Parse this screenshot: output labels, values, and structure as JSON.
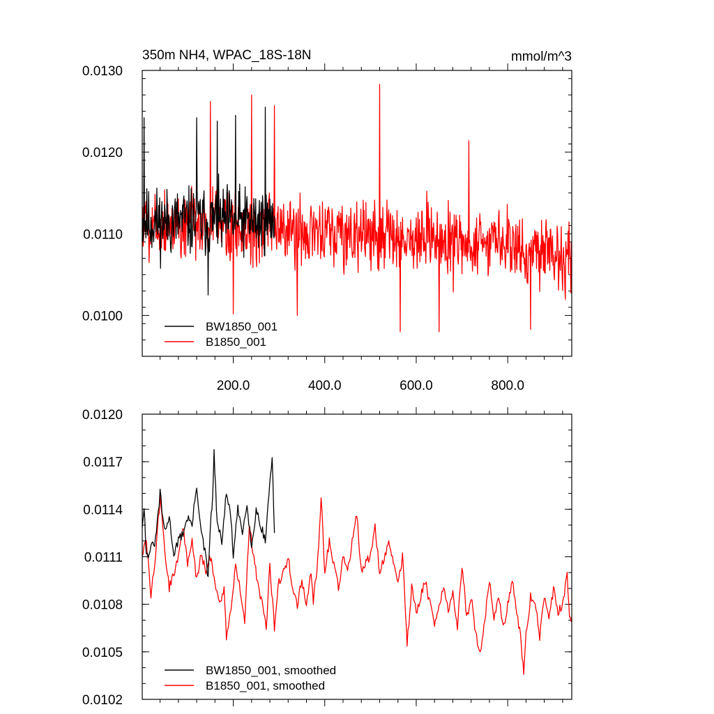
{
  "chart_data": [
    {
      "type": "line",
      "title_left": "350m NH4, WPAC_18S-18N",
      "title_right": "mmol/m^3",
      "xlabel": "",
      "ylabel": "",
      "xlim": [
        1,
        940
      ],
      "ylim": [
        0.0095,
        0.013
      ],
      "xticks": [
        200,
        400,
        600,
        800
      ],
      "xtick_labels": [
        "200.0",
        "400.0",
        "600.0",
        "800.0"
      ],
      "yticks": [
        0.01,
        0.011,
        0.012,
        0.013
      ],
      "ytick_labels": [
        "0.0100",
        "0.0110",
        "0.0120",
        "0.0130"
      ],
      "legend_placement": "bottom-left",
      "grid": false,
      "series": [
        {
          "name": "BW1850_001",
          "color": "#000000",
          "x_range": [
            1,
            290
          ],
          "mean": 0.01115,
          "noise": 0.00068,
          "seed": 11,
          "highlights": [
            [
              5,
              0.01242
            ],
            [
              120,
              0.01242
            ],
            [
              165,
              0.01238
            ],
            [
              205,
              0.01245
            ],
            [
              270,
              0.01255
            ],
            [
              145,
              0.01025
            ]
          ]
        },
        {
          "name": "B1850_001",
          "color": "#ff0000",
          "x_range": [
            1,
            940
          ],
          "mean_start": 0.01115,
          "mean_end": 0.0108,
          "noise": 0.00072,
          "seed": 5,
          "highlights": [
            [
              150,
              0.01262
            ],
            [
              200,
              0.01002
            ],
            [
              240,
              0.0127
            ],
            [
              290,
              0.01257
            ],
            [
              340,
              0.01
            ],
            [
              520,
              0.01283
            ],
            [
              565,
              0.0098
            ],
            [
              650,
              0.0098
            ],
            [
              715,
              0.01214
            ],
            [
              850,
              0.00983
            ]
          ]
        }
      ]
    },
    {
      "type": "line",
      "title_left": "",
      "title_right": "",
      "xlabel": "",
      "ylabel": "",
      "xlim": [
        1,
        940
      ],
      "ylim": [
        0.0102,
        0.012
      ],
      "xticks": [
        200,
        400,
        600,
        800
      ],
      "xtick_labels": [],
      "yticks": [
        0.0102,
        0.0105,
        0.0108,
        0.0111,
        0.0114,
        0.0117,
        0.012
      ],
      "ytick_labels": [
        "0.0102",
        "0.0105",
        "0.0108",
        "0.0111",
        "0.0114",
        "0.0117",
        "0.0120"
      ],
      "legend_placement": "bottom-left",
      "grid": false,
      "series": [
        {
          "name": "BW1850_001, smoothed",
          "color": "#000000",
          "points": [
            [
              1,
              0.0113
            ],
            [
              5,
              0.01143
            ],
            [
              10,
              0.0111
            ],
            [
              20,
              0.01115
            ],
            [
              30,
              0.0112
            ],
            [
              40,
              0.0115
            ],
            [
              50,
              0.01125
            ],
            [
              60,
              0.01135
            ],
            [
              70,
              0.01112
            ],
            [
              80,
              0.0112
            ],
            [
              90,
              0.01125
            ],
            [
              100,
              0.01135
            ],
            [
              110,
              0.0113
            ],
            [
              120,
              0.01155
            ],
            [
              130,
              0.01125
            ],
            [
              140,
              0.0111
            ],
            [
              145,
              0.01095
            ],
            [
              150,
              0.0113
            ],
            [
              155,
              0.01148
            ],
            [
              158,
              0.01175
            ],
            [
              165,
              0.0113
            ],
            [
              175,
              0.0112
            ],
            [
              185,
              0.0115
            ],
            [
              195,
              0.01135
            ],
            [
              200,
              0.0111
            ],
            [
              210,
              0.0114
            ],
            [
              220,
              0.01125
            ],
            [
              230,
              0.01145
            ],
            [
              240,
              0.01115
            ],
            [
              250,
              0.0114
            ],
            [
              260,
              0.0113
            ],
            [
              270,
              0.0112
            ],
            [
              278,
              0.0115
            ],
            [
              285,
              0.01173
            ],
            [
              290,
              0.01125
            ]
          ]
        },
        {
          "name": "B1850_001, smoothed",
          "color": "#ff0000",
          "points": [
            [
              1,
              0.01112
            ],
            [
              10,
              0.0112
            ],
            [
              20,
              0.01085
            ],
            [
              30,
              0.0111
            ],
            [
              40,
              0.01148
            ],
            [
              50,
              0.01115
            ],
            [
              60,
              0.0109
            ],
            [
              70,
              0.011
            ],
            [
              80,
              0.0111
            ],
            [
              90,
              0.0113
            ],
            [
              100,
              0.01105
            ],
            [
              110,
              0.0112
            ],
            [
              120,
              0.01095
            ],
            [
              130,
              0.01112
            ],
            [
              140,
              0.011
            ],
            [
              150,
              0.0111
            ],
            [
              160,
              0.01095
            ],
            [
              170,
              0.0108
            ],
            [
              180,
              0.0109
            ],
            [
              185,
              0.0106
            ],
            [
              195,
              0.01075
            ],
            [
              205,
              0.01105
            ],
            [
              215,
              0.0109
            ],
            [
              225,
              0.0107
            ],
            [
              235,
              0.0113
            ],
            [
              245,
              0.0111
            ],
            [
              255,
              0.0109
            ],
            [
              265,
              0.0108
            ],
            [
              272,
              0.01065
            ],
            [
              280,
              0.01105
            ],
            [
              290,
              0.01065
            ],
            [
              300,
              0.01095
            ],
            [
              310,
              0.011
            ],
            [
              320,
              0.0111
            ],
            [
              330,
              0.0109
            ],
            [
              340,
              0.0108
            ],
            [
              350,
              0.01095
            ],
            [
              360,
              0.0108
            ],
            [
              370,
              0.011
            ],
            [
              375,
              0.0108
            ],
            [
              385,
              0.0111
            ],
            [
              392,
              0.01148
            ],
            [
              400,
              0.011
            ],
            [
              410,
              0.0112
            ],
            [
              420,
              0.01105
            ],
            [
              430,
              0.0109
            ],
            [
              440,
              0.0111
            ],
            [
              450,
              0.011
            ],
            [
              460,
              0.0112
            ],
            [
              470,
              0.01138
            ],
            [
              480,
              0.011
            ],
            [
              490,
              0.01108
            ],
            [
              500,
              0.0111
            ],
            [
              510,
              0.01128
            ],
            [
              520,
              0.011
            ],
            [
              530,
              0.0111
            ],
            [
              540,
              0.01118
            ],
            [
              550,
              0.01105
            ],
            [
              560,
              0.01095
            ],
            [
              570,
              0.0111
            ],
            [
              575,
              0.01085
            ],
            [
              580,
              0.01055
            ],
            [
              590,
              0.0109
            ],
            [
              600,
              0.01075
            ],
            [
              610,
              0.01085
            ],
            [
              620,
              0.01095
            ],
            [
              630,
              0.0108
            ],
            [
              640,
              0.01065
            ],
            [
              650,
              0.0108
            ],
            [
              660,
              0.0109
            ],
            [
              670,
              0.01075
            ],
            [
              680,
              0.0109
            ],
            [
              690,
              0.01065
            ],
            [
              700,
              0.01105
            ],
            [
              705,
              0.0109
            ],
            [
              710,
              0.0107
            ],
            [
              720,
              0.01085
            ],
            [
              730,
              0.0106
            ],
            [
              740,
              0.0105
            ],
            [
              750,
              0.0107
            ],
            [
              760,
              0.01095
            ],
            [
              770,
              0.0107
            ],
            [
              780,
              0.01085
            ],
            [
              790,
              0.01065
            ],
            [
              800,
              0.0108
            ],
            [
              810,
              0.01095
            ],
            [
              820,
              0.01075
            ],
            [
              830,
              0.01055
            ],
            [
              835,
              0.01034
            ],
            [
              840,
              0.0106
            ],
            [
              850,
              0.01085
            ],
            [
              860,
              0.0108
            ],
            [
              870,
              0.0106
            ],
            [
              880,
              0.01085
            ],
            [
              890,
              0.0107
            ],
            [
              900,
              0.0109
            ],
            [
              910,
              0.01075
            ],
            [
              920,
              0.0108
            ],
            [
              930,
              0.011
            ],
            [
              935,
              0.0107
            ],
            [
              940,
              0.01072
            ]
          ]
        }
      ]
    }
  ]
}
